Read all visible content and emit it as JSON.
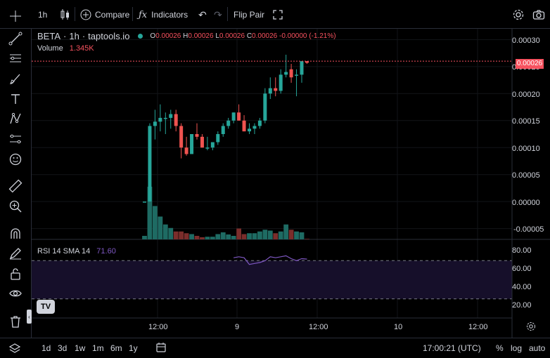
{
  "topbar": {
    "interval": "1h",
    "compare_label": "Compare",
    "indicators_label": "Indicators",
    "flip_pair_label": "Flip Pair"
  },
  "legend": {
    "symbol": "BETA",
    "interval": "1h",
    "source": "taptools.io",
    "open_label": "O",
    "open": "0.00026",
    "high_label": "H",
    "high": "0.00026",
    "low_label": "L",
    "low": "0.00026",
    "close_label": "C",
    "close": "0.00026",
    "change": "-0.00000",
    "change_pct": "(-1.21%)",
    "volume_label": "Volume",
    "volume": "1.345K"
  },
  "rsi": {
    "label": "RSI 14 SMA 14",
    "value": "71.60"
  },
  "price_axis": {
    "labels": [
      "0.00030",
      "0.00025",
      "0.00020",
      "0.00015",
      "0.00010",
      "0.00005",
      "0.00000",
      "-0.00005"
    ],
    "last_price": "0.00026"
  },
  "rsi_axis": {
    "labels": [
      "80.00",
      "60.00",
      "40.00",
      "20.00"
    ]
  },
  "time_axis": {
    "labels": [
      "12:00",
      "9",
      "12:00",
      "10",
      "12:00"
    ]
  },
  "bottombar": {
    "ranges": [
      "1d",
      "3d",
      "1w",
      "1m",
      "6m",
      "1y"
    ],
    "clock": "17:00:21 (UTC)",
    "percent_label": "%",
    "log_label": "log",
    "auto_label": "auto"
  },
  "colors": {
    "up": "#26a69a",
    "down": "#ef5350",
    "vol_up": "#1e6b63",
    "vol_down": "#7b2d2b",
    "rsi_line": "#7e57c2",
    "rsi_band": "#160f2a",
    "last_price": "#f7525f"
  },
  "chart_data": {
    "type": "candlestick",
    "y_range": [
      -7e-05,
      0.00032
    ],
    "candles": [
      {
        "o": 0.0,
        "h": 0.0,
        "l": 0.0,
        "c": 0.0,
        "v": 20
      },
      {
        "o": 0.0,
        "h": 0.000145,
        "l": 0.0,
        "c": 0.00014,
        "v": 300
      },
      {
        "o": 0.00014,
        "h": 0.00017,
        "l": 0.000115,
        "c": 0.000148,
        "v": 190
      },
      {
        "o": 0.000148,
        "h": 0.00018,
        "l": 0.00013,
        "c": 0.000155,
        "v": 130
      },
      {
        "o": 0.000155,
        "h": 0.000165,
        "l": 0.000125,
        "c": 0.000155,
        "v": 85
      },
      {
        "o": 0.000155,
        "h": 0.00017,
        "l": 0.000135,
        "c": 0.000162,
        "v": 65
      },
      {
        "o": 0.000162,
        "h": 0.00017,
        "l": 0.00013,
        "c": 0.00014,
        "v": 45
      },
      {
        "o": 0.00014,
        "h": 0.000145,
        "l": 8e-05,
        "c": 0.0001,
        "v": 45
      },
      {
        "o": 0.0001,
        "h": 0.00012,
        "l": 8.5e-05,
        "c": 8.8e-05,
        "v": 35
      },
      {
        "o": 8.8e-05,
        "h": 0.000125,
        "l": 8.8e-05,
        "c": 0.000125,
        "v": 30
      },
      {
        "o": 0.000125,
        "h": 0.000145,
        "l": 0.000115,
        "c": 0.00012,
        "v": 20
      },
      {
        "o": 0.00012,
        "h": 0.000125,
        "l": 0.0001,
        "c": 0.0001,
        "v": 12
      },
      {
        "o": 0.0001,
        "h": 0.00012,
        "l": 9.5e-05,
        "c": 0.0001,
        "v": 15
      },
      {
        "o": 0.0001,
        "h": 0.00011,
        "l": 9.5e-05,
        "c": 0.00011,
        "v": 15
      },
      {
        "o": 0.00011,
        "h": 0.00013,
        "l": 0.000105,
        "c": 0.000125,
        "v": 30
      },
      {
        "o": 0.000125,
        "h": 0.000145,
        "l": 0.00012,
        "c": 0.00014,
        "v": 40
      },
      {
        "o": 0.00014,
        "h": 0.000155,
        "l": 0.000135,
        "c": 0.00015,
        "v": 28
      },
      {
        "o": 0.00015,
        "h": 0.000165,
        "l": 0.000145,
        "c": 0.000165,
        "v": 20
      },
      {
        "o": 0.000165,
        "h": 0.00018,
        "l": 0.00015,
        "c": 0.00015,
        "v": 62
      },
      {
        "o": 0.00015,
        "h": 0.00016,
        "l": 0.00013,
        "c": 0.00013,
        "v": 30
      },
      {
        "o": 0.00013,
        "h": 0.000145,
        "l": 0.000125,
        "c": 0.000135,
        "v": 35
      },
      {
        "o": 0.000135,
        "h": 0.000145,
        "l": 0.000125,
        "c": 0.00014,
        "v": 35
      },
      {
        "o": 0.00014,
        "h": 0.000155,
        "l": 0.000135,
        "c": 0.00015,
        "v": 45
      },
      {
        "o": 0.00015,
        "h": 0.00021,
        "l": 0.000145,
        "c": 0.0002,
        "v": 55
      },
      {
        "o": 0.0002,
        "h": 0.00023,
        "l": 0.00019,
        "c": 0.00021,
        "v": 50
      },
      {
        "o": 0.00021,
        "h": 0.00023,
        "l": 0.000195,
        "c": 0.000205,
        "v": 35
      },
      {
        "o": 0.000205,
        "h": 0.000245,
        "l": 0.0002,
        "c": 0.000235,
        "v": 45
      },
      {
        "o": 0.000235,
        "h": 0.000272,
        "l": 0.00023,
        "c": 0.00024,
        "v": 85
      },
      {
        "o": 0.000245,
        "h": 0.000255,
        "l": 0.00022,
        "c": 0.00023,
        "v": 55
      },
      {
        "o": 0.000235,
        "h": 0.000245,
        "l": 0.000195,
        "c": 0.000235,
        "v": 45
      },
      {
        "o": 0.000235,
        "h": 0.00026,
        "l": 0.00022,
        "c": 0.00026,
        "v": 40
      },
      {
        "o": 0.00026,
        "h": 0.00026,
        "l": 0.000255,
        "c": 0.000257,
        "v": 3
      }
    ],
    "rsi": [
      null,
      null,
      null,
      null,
      null,
      null,
      null,
      null,
      null,
      null,
      null,
      null,
      null,
      null,
      null,
      null,
      null,
      73,
      74,
      73,
      66,
      67,
      68,
      70,
      74,
      73,
      74,
      75,
      72,
      70,
      72,
      71.6
    ],
    "rsi_range": [
      10,
      90
    ],
    "rsi_bands": [
      70,
      30
    ]
  }
}
